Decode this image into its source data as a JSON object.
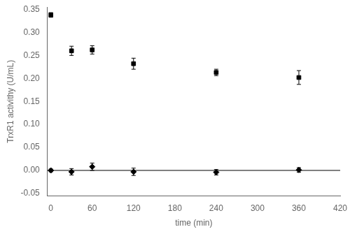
{
  "chart_data": {
    "type": "scatter",
    "xlabel": "time (min)",
    "ylabel": "TrxR1 activithy (U/mL)",
    "series": [
      {
        "x": [
          0,
          30,
          60,
          120,
          240,
          360
        ],
        "values": [
          0.338,
          0.26,
          0.262,
          0.232,
          0.213,
          0.202
        ],
        "yerr": [
          0.005,
          0.01,
          0.009,
          0.012,
          0.007,
          0.015
        ],
        "color": "#000000",
        "marker": "square"
      },
      {
        "x": [
          0,
          30,
          60,
          120,
          240,
          360
        ],
        "values": [
          0.0,
          -0.003,
          0.008,
          -0.003,
          -0.004,
          0.001
        ],
        "yerr": [
          0.003,
          0.007,
          0.008,
          0.008,
          0.006,
          0.005
        ],
        "color": "#000000",
        "marker": "diamond"
      }
    ],
    "hlines": [
      0
    ],
    "xlim": [
      -5,
      420
    ],
    "ylim": [
      -0.055,
      0.355
    ],
    "xticks": [
      0,
      60,
      120,
      180,
      240,
      300,
      360,
      420
    ],
    "yticks": [
      -0.05,
      {
        "value": 0.0,
        "label": "0.00"
      },
      0.05,
      {
        "value": 0.1,
        "label": "0.10"
      },
      0.15,
      {
        "value": 0.2,
        "label": "0.20"
      },
      0.25,
      {
        "value": 0.3,
        "label": "0.30"
      },
      0.35
    ],
    "grid": false
  }
}
